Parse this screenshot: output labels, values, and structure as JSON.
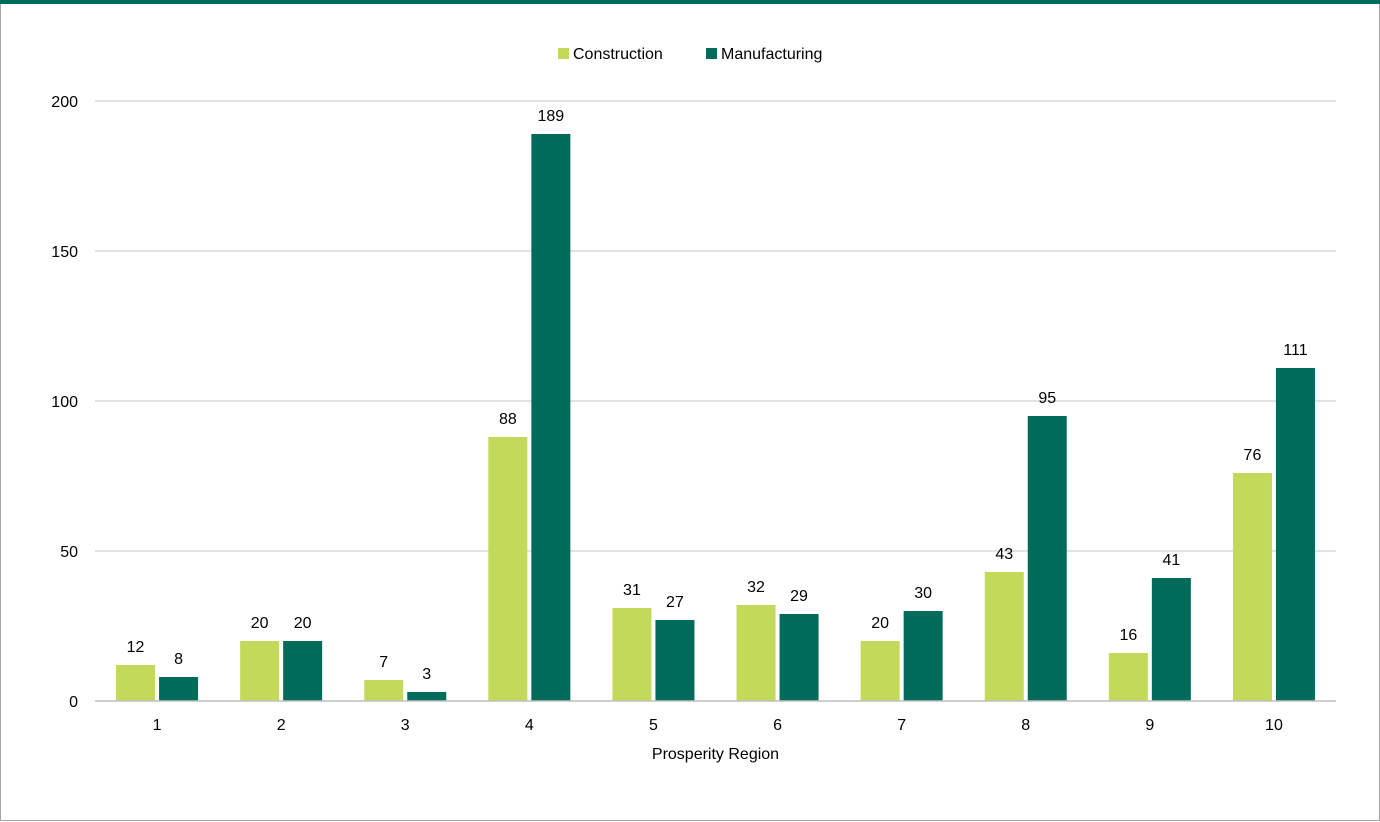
{
  "colors": {
    "top_bar": "#006b5a",
    "construction": "#c2d95a",
    "manufacturing": "#006b5a",
    "gridline": "#d9d9d9",
    "axis": "#bfbfbf"
  },
  "chart_data": {
    "type": "bar",
    "title": "",
    "xlabel": "Prosperity Region",
    "ylabel": "",
    "categories": [
      "1",
      "2",
      "3",
      "4",
      "5",
      "6",
      "7",
      "8",
      "9",
      "10"
    ],
    "series": [
      {
        "name": "Construction",
        "values": [
          12,
          20,
          7,
          88,
          31,
          32,
          20,
          43,
          16,
          76
        ]
      },
      {
        "name": "Manufacturing",
        "values": [
          8,
          20,
          3,
          189,
          27,
          29,
          30,
          95,
          41,
          111
        ]
      }
    ],
    "ylim": [
      0,
      200
    ],
    "yticks": [
      0,
      50,
      100,
      150,
      200
    ],
    "grid": true,
    "legend_position": "top-center",
    "data_labels": true
  }
}
